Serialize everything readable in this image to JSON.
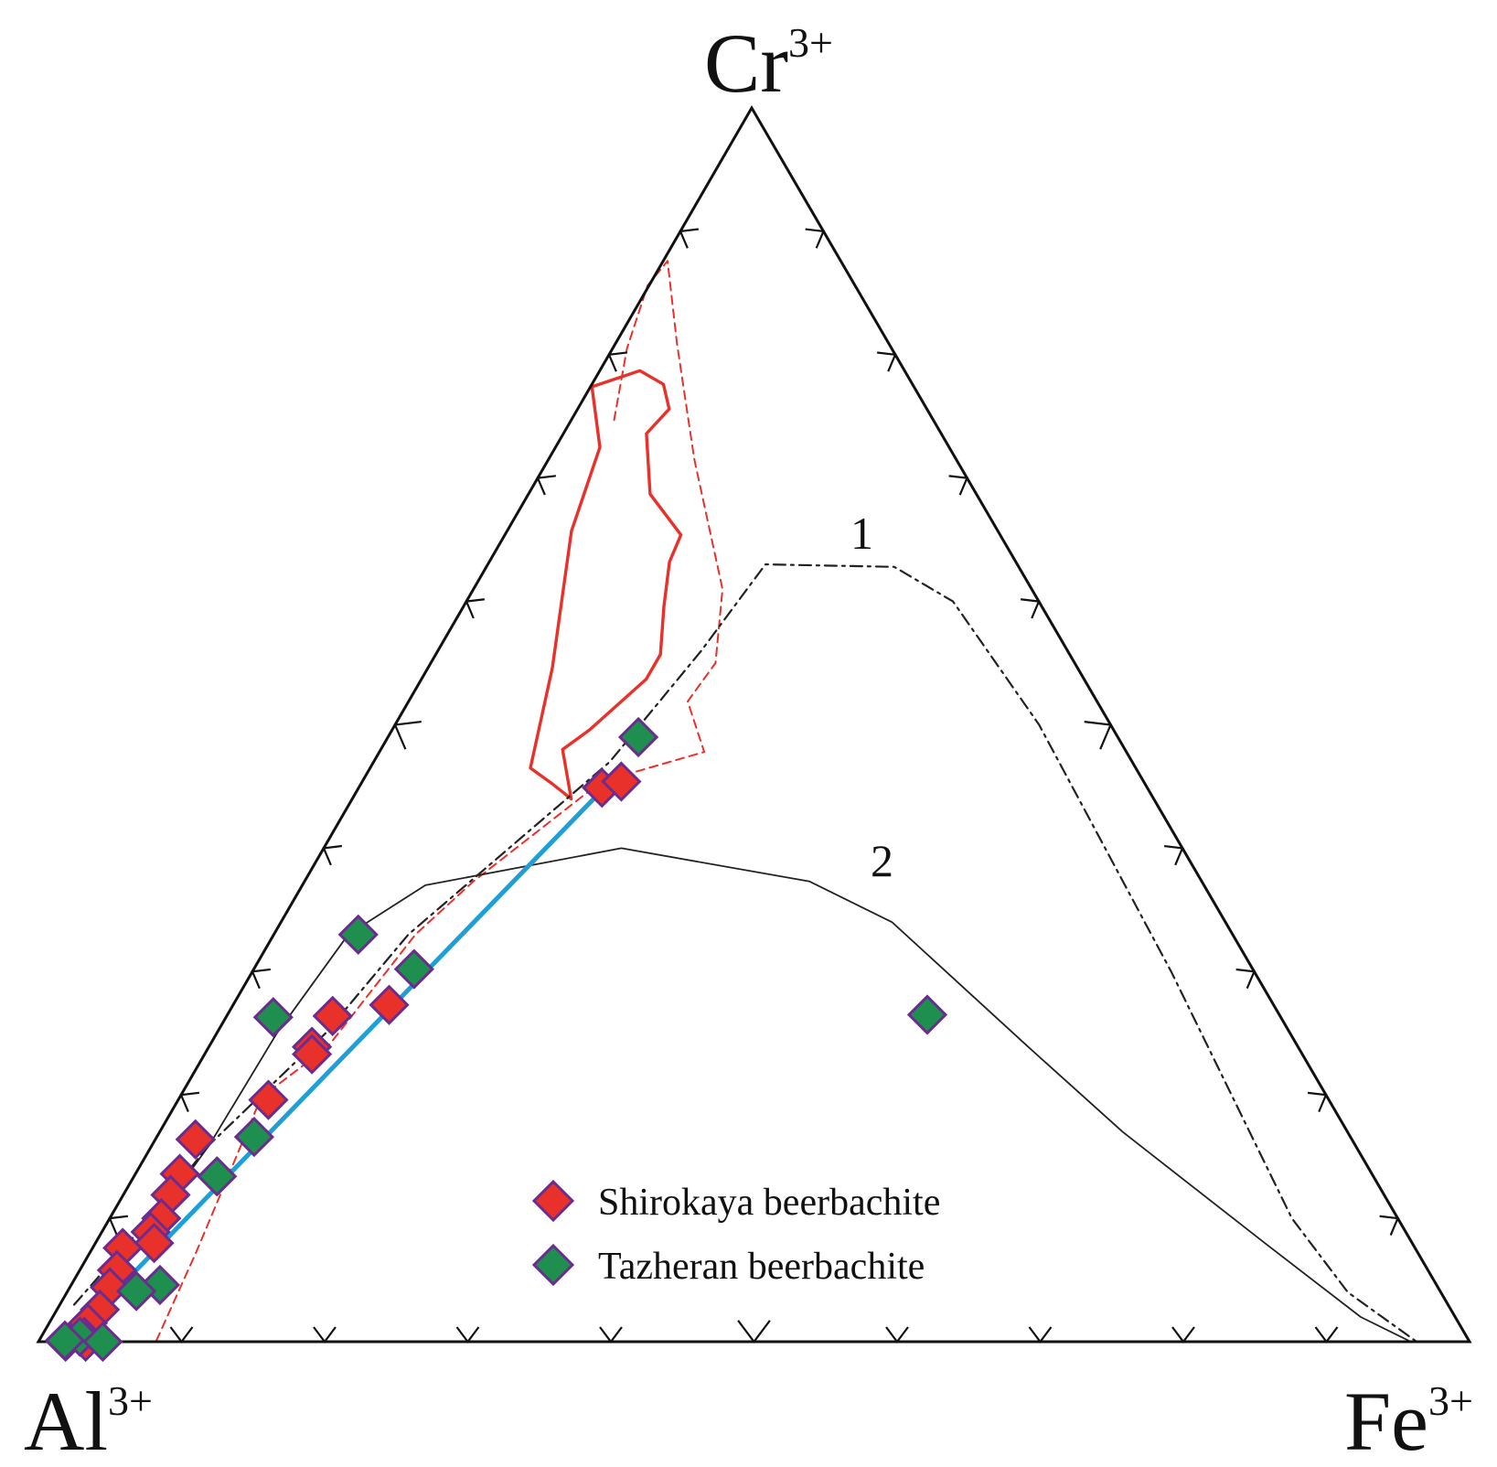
{
  "chart_data": {
    "type": "ternary",
    "apices": {
      "top": {
        "main": "Cr",
        "sup": "3+"
      },
      "left": {
        "main": "Al",
        "sup": "3+"
      },
      "right": {
        "main": "Fe",
        "sup": "3+"
      }
    },
    "tick_interval": 0.1,
    "curve_labels": [
      {
        "id": "curve-1",
        "text": "1"
      },
      {
        "id": "curve-2",
        "text": "2"
      }
    ],
    "legend": [
      {
        "label": "Shirokaya beerbachite",
        "color": "#e8312a"
      },
      {
        "label": "Tazheran beerbachite",
        "color": "#1e8f4e"
      }
    ],
    "series": [
      {
        "name": "Shirokaya beerbachite",
        "color": "#e8312a",
        "edge_color": "#6a2c8e",
        "points": [
          {
            "al": 0.381,
            "cr": 0.449,
            "fe": 0.17
          },
          {
            "al": 0.365,
            "cr": 0.454,
            "fe": 0.181
          },
          {
            "al": 0.618,
            "cr": 0.273,
            "fe": 0.109
          },
          {
            "al": 0.662,
            "cr": 0.264,
            "fe": 0.074
          },
          {
            "al": 0.689,
            "cr": 0.239,
            "fe": 0.072
          },
          {
            "al": 0.692,
            "cr": 0.233,
            "fe": 0.075
          },
          {
            "al": 0.741,
            "cr": 0.196,
            "fe": 0.063
          },
          {
            "al": 0.808,
            "cr": 0.164,
            "fe": 0.028
          },
          {
            "al": 0.833,
            "cr": 0.136,
            "fe": 0.031
          },
          {
            "al": 0.848,
            "cr": 0.119,
            "fe": 0.033
          },
          {
            "al": 0.864,
            "cr": 0.1,
            "fe": 0.036
          },
          {
            "al": 0.877,
            "cr": 0.089,
            "fe": 0.034
          },
          {
            "al": 0.879,
            "cr": 0.08,
            "fe": 0.041
          },
          {
            "al": 0.903,
            "cr": 0.076,
            "fe": 0.021
          },
          {
            "al": 0.916,
            "cr": 0.058,
            "fe": 0.026
          },
          {
            "al": 0.928,
            "cr": 0.044,
            "fe": 0.028
          },
          {
            "al": 0.944,
            "cr": 0.026,
            "fe": 0.03
          },
          {
            "al": 0.958,
            "cr": 0.015,
            "fe": 0.027
          },
          {
            "al": 0.966,
            "cr": 0.004,
            "fe": 0.03
          },
          {
            "al": 0.981,
            "cr": 0.0,
            "fe": 0.019
          },
          {
            "al": 0.967,
            "cr": 0.0,
            "fe": 0.033
          }
        ]
      },
      {
        "name": "Tazheran beerbachite",
        "color": "#1e8f4e",
        "edge_color": "#6a2c8e",
        "points": [
          {
            "al": 0.335,
            "cr": 0.49,
            "fe": 0.175
          },
          {
            "al": 0.246,
            "cr": 0.265,
            "fe": 0.489
          },
          {
            "al": 0.611,
            "cr": 0.33,
            "fe": 0.059
          },
          {
            "al": 0.586,
            "cr": 0.302,
            "fe": 0.112
          },
          {
            "al": 0.704,
            "cr": 0.263,
            "fe": 0.033
          },
          {
            "al": 0.766,
            "cr": 0.166,
            "fe": 0.068
          },
          {
            "al": 0.808,
            "cr": 0.134,
            "fe": 0.058
          },
          {
            "al": 0.892,
            "cr": 0.046,
            "fe": 0.062
          },
          {
            "al": 0.911,
            "cr": 0.041,
            "fe": 0.048
          },
          {
            "al": 0.969,
            "cr": 0.004,
            "fe": 0.027
          },
          {
            "al": 0.955,
            "cr": 0.0,
            "fe": 0.045
          },
          {
            "al": 0.981,
            "cr": 0.001,
            "fe": 0.018
          }
        ]
      }
    ],
    "arrow": {
      "color": "#1f9fd6",
      "from": {
        "al": 0.39,
        "cr": 0.441,
        "fe": 0.169
      },
      "to": {
        "al": 0.94,
        "cr": 0.03,
        "fe": 0.03
      }
    },
    "fields": [
      {
        "id": "red-solid-field",
        "style": "solid",
        "color": "#e8312a",
        "points": [
          {
            "al": 0.407,
            "cr": 0.44,
            "fe": 0.153
          },
          {
            "al": 0.393,
            "cr": 0.48,
            "fe": 0.127
          },
          {
            "al": 0.366,
            "cr": 0.496,
            "fe": 0.138
          },
          {
            "al": 0.306,
            "cr": 0.537,
            "fe": 0.157
          },
          {
            "al": 0.286,
            "cr": 0.557,
            "fe": 0.157
          },
          {
            "al": 0.264,
            "cr": 0.596,
            "fe": 0.14
          },
          {
            "al": 0.242,
            "cr": 0.632,
            "fe": 0.126
          },
          {
            "al": 0.223,
            "cr": 0.654,
            "fe": 0.123
          },
          {
            "al": 0.228,
            "cr": 0.687,
            "fe": 0.085
          },
          {
            "al": 0.206,
            "cr": 0.736,
            "fe": 0.058
          },
          {
            "al": 0.18,
            "cr": 0.756,
            "fe": 0.064
          },
          {
            "al": 0.174,
            "cr": 0.776,
            "fe": 0.05
          },
          {
            "al": 0.185,
            "cr": 0.787,
            "fe": 0.028
          },
          {
            "al": 0.225,
            "cr": 0.774,
            "fe": 0.001
          },
          {
            "al": 0.244,
            "cr": 0.725,
            "fe": 0.031
          },
          {
            "al": 0.298,
            "cr": 0.657,
            "fe": 0.045
          },
          {
            "al": 0.367,
            "cr": 0.546,
            "fe": 0.087
          },
          {
            "al": 0.423,
            "cr": 0.465,
            "fe": 0.112
          },
          {
            "al": 0.414,
            "cr": 0.452,
            "fe": 0.134
          },
          {
            "al": 0.407,
            "cr": 0.44,
            "fe": 0.153
          }
        ]
      },
      {
        "id": "red-dashed-field",
        "style": "dashed",
        "color": "#e8312a",
        "points": [
          {
            "al": 0.917,
            "cr": 0.001,
            "fe": 0.082
          },
          {
            "al": 0.853,
            "cr": 0.073,
            "fe": 0.074
          },
          {
            "al": 0.745,
            "cr": 0.198,
            "fe": 0.057
          },
          {
            "al": 0.678,
            "cr": 0.239,
            "fe": 0.083
          },
          {
            "al": 0.571,
            "cr": 0.33,
            "fe": 0.099
          },
          {
            "al": 0.509,
            "cr": 0.373,
            "fe": 0.118
          },
          {
            "al": 0.379,
            "cr": 0.454,
            "fe": 0.167
          },
          {
            "al": 0.295,
            "cr": 0.478,
            "fe": 0.227
          },
          {
            "al": 0.286,
            "cr": 0.519,
            "fe": 0.195
          },
          {
            "al": 0.251,
            "cr": 0.55,
            "fe": 0.199
          },
          {
            "al": 0.216,
            "cr": 0.61,
            "fe": 0.174
          },
          {
            "al": 0.183,
            "cr": 0.715,
            "fe": 0.102
          },
          {
            "al": 0.148,
            "cr": 0.809,
            "fe": 0.043
          },
          {
            "al": 0.121,
            "cr": 0.876,
            "fe": 0.003
          },
          {
            "al": 0.145,
            "cr": 0.856,
            "fe": -0.001
          },
          {
            "al": 0.185,
            "cr": 0.805,
            "fe": 0.01
          },
          {
            "al": 0.225,
            "cr": 0.744,
            "fe": 0.031
          }
        ]
      },
      {
        "id": "curve-1",
        "style": "dashdot",
        "color": "#222222",
        "points": [
          {
            "al": 0.96,
            "cr": 0.03,
            "fe": 0.01
          },
          {
            "al": 0.872,
            "cr": 0.1,
            "fe": 0.028
          },
          {
            "al": 0.8,
            "cr": 0.16,
            "fe": 0.04
          },
          {
            "al": 0.674,
            "cr": 0.25,
            "fe": 0.076
          },
          {
            "al": 0.576,
            "cr": 0.33,
            "fe": 0.094
          },
          {
            "al": 0.365,
            "cr": 0.47,
            "fe": 0.165
          },
          {
            "al": 0.256,
            "cr": 0.56,
            "fe": 0.184
          },
          {
            "al": 0.176,
            "cr": 0.63,
            "fe": 0.194
          },
          {
            "al": 0.087,
            "cr": 0.628,
            "fe": 0.285
          },
          {
            "al": 0.06,
            "cr": 0.6,
            "fe": 0.34
          },
          {
            "al": 0.05,
            "cr": 0.5,
            "fe": 0.45
          },
          {
            "al": 0.058,
            "cr": 0.3,
            "fe": 0.642
          },
          {
            "al": 0.074,
            "cr": 0.1,
            "fe": 0.826
          },
          {
            "al": 0.065,
            "cr": 0.04,
            "fe": 0.895
          },
          {
            "al": 0.037,
            "cr": 0.0,
            "fe": 0.963
          }
        ]
      },
      {
        "id": "curve-2",
        "style": "solid",
        "color": "#222222",
        "points": [
          {
            "al": 0.97,
            "cr": 0.0,
            "fe": 0.03
          },
          {
            "al": 0.89,
            "cr": 0.08,
            "fe": 0.03
          },
          {
            "al": 0.8,
            "cr": 0.16,
            "fe": 0.04
          },
          {
            "al": 0.708,
            "cr": 0.25,
            "fe": 0.042
          },
          {
            "al": 0.618,
            "cr": 0.33,
            "fe": 0.052
          },
          {
            "al": 0.544,
            "cr": 0.37,
            "fe": 0.086
          },
          {
            "al": 0.392,
            "cr": 0.4,
            "fe": 0.208
          },
          {
            "al": 0.274,
            "cr": 0.373,
            "fe": 0.353
          },
          {
            "al": 0.233,
            "cr": 0.34,
            "fe": 0.427
          },
          {
            "al": 0.189,
            "cr": 0.24,
            "fe": 0.571
          },
          {
            "al": 0.157,
            "cr": 0.17,
            "fe": 0.673
          },
          {
            "al": 0.103,
            "cr": 0.08,
            "fe": 0.817
          },
          {
            "al": 0.066,
            "cr": 0.02,
            "fe": 0.914
          },
          {
            "al": 0.041,
            "cr": 0.0,
            "fe": 0.959
          }
        ]
      }
    ]
  }
}
